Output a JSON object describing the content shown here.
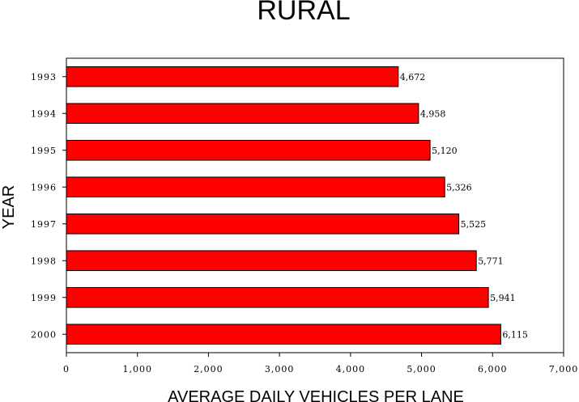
{
  "chart_data": {
    "type": "bar",
    "orientation": "horizontal",
    "title": "RURAL",
    "xlabel": "AVERAGE DAILY VEHICLES PER LANE",
    "ylabel": "YEAR",
    "categories": [
      "1993",
      "1994",
      "1995",
      "1996",
      "1997",
      "1998",
      "1999",
      "2000"
    ],
    "values": [
      4672,
      4958,
      5120,
      5326,
      5525,
      5771,
      5941,
      6115
    ],
    "data_labels": [
      "4,672",
      "4,958",
      "5,120",
      "5,326",
      "5,525",
      "5,771",
      "5,941",
      "6,115"
    ],
    "xlim": [
      0,
      7000
    ],
    "x_ticks": [
      0,
      1000,
      2000,
      3000,
      4000,
      5000,
      6000,
      7000
    ],
    "x_tick_labels": [
      "0",
      "1,000",
      "2,000",
      "3,000",
      "4,000",
      "5,000",
      "6,000",
      "7,000"
    ],
    "grid": false,
    "legend": "none",
    "bar_color": "#ff0000",
    "bar_edge_color": "#000000"
  }
}
